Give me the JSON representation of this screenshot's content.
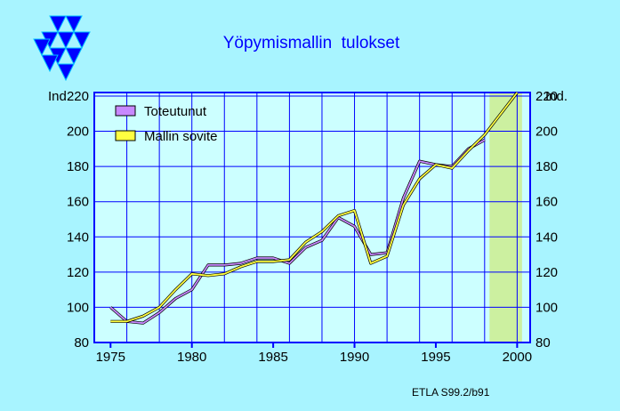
{
  "chart_data": {
    "type": "line",
    "title": "Yöpymismallin  tulokset",
    "ylabel_left": "Ind.",
    "ylabel_right": "Ind.",
    "source": "ETLA S99.2/b91",
    "ylim": [
      80,
      222
    ],
    "xlim": [
      1974,
      2000.8
    ],
    "y_ticks": [
      80,
      100,
      120,
      140,
      160,
      180,
      200,
      220
    ],
    "x_ticks": [
      1975,
      1980,
      1985,
      1990,
      1995,
      2000
    ],
    "x_gridlines": [
      1976,
      1978,
      1980,
      1982,
      1984,
      1986,
      1988,
      1990,
      1992,
      1994,
      1996,
      1998,
      2000
    ],
    "forecast_band": [
      1998.3,
      2000.3
    ],
    "grid": true,
    "legend_position": "top-left",
    "series": [
      {
        "name": "Toteutunut",
        "color": "#c888ff",
        "x": [
          1975,
          1976,
          1977,
          1978,
          1979,
          1980,
          1981,
          1982,
          1983,
          1984,
          1985,
          1986,
          1987,
          1988,
          1989,
          1990,
          1991,
          1992,
          1993,
          1994,
          1995,
          1996,
          1997,
          1998
        ],
        "y": [
          100,
          92,
          91,
          97,
          105,
          110,
          124,
          124,
          125,
          128,
          128,
          125,
          134,
          138,
          151,
          146,
          130,
          131,
          162,
          183,
          181,
          180,
          190,
          195
        ]
      },
      {
        "name": "Mallin sovite",
        "color": "#ffff40",
        "x": [
          1975,
          1976,
          1977,
          1978,
          1979,
          1980,
          1981,
          1982,
          1983,
          1984,
          1985,
          1986,
          1987,
          1988,
          1989,
          1990,
          1991,
          1992,
          1993,
          1994,
          1995,
          1996,
          1997,
          1998,
          1999,
          2000
        ],
        "y": [
          92,
          92,
          95,
          100,
          110,
          119,
          118,
          119,
          123,
          126,
          126,
          127,
          137,
          143,
          152,
          155,
          125,
          129,
          158,
          173,
          181,
          179,
          189,
          198,
          210,
          222
        ]
      }
    ]
  }
}
